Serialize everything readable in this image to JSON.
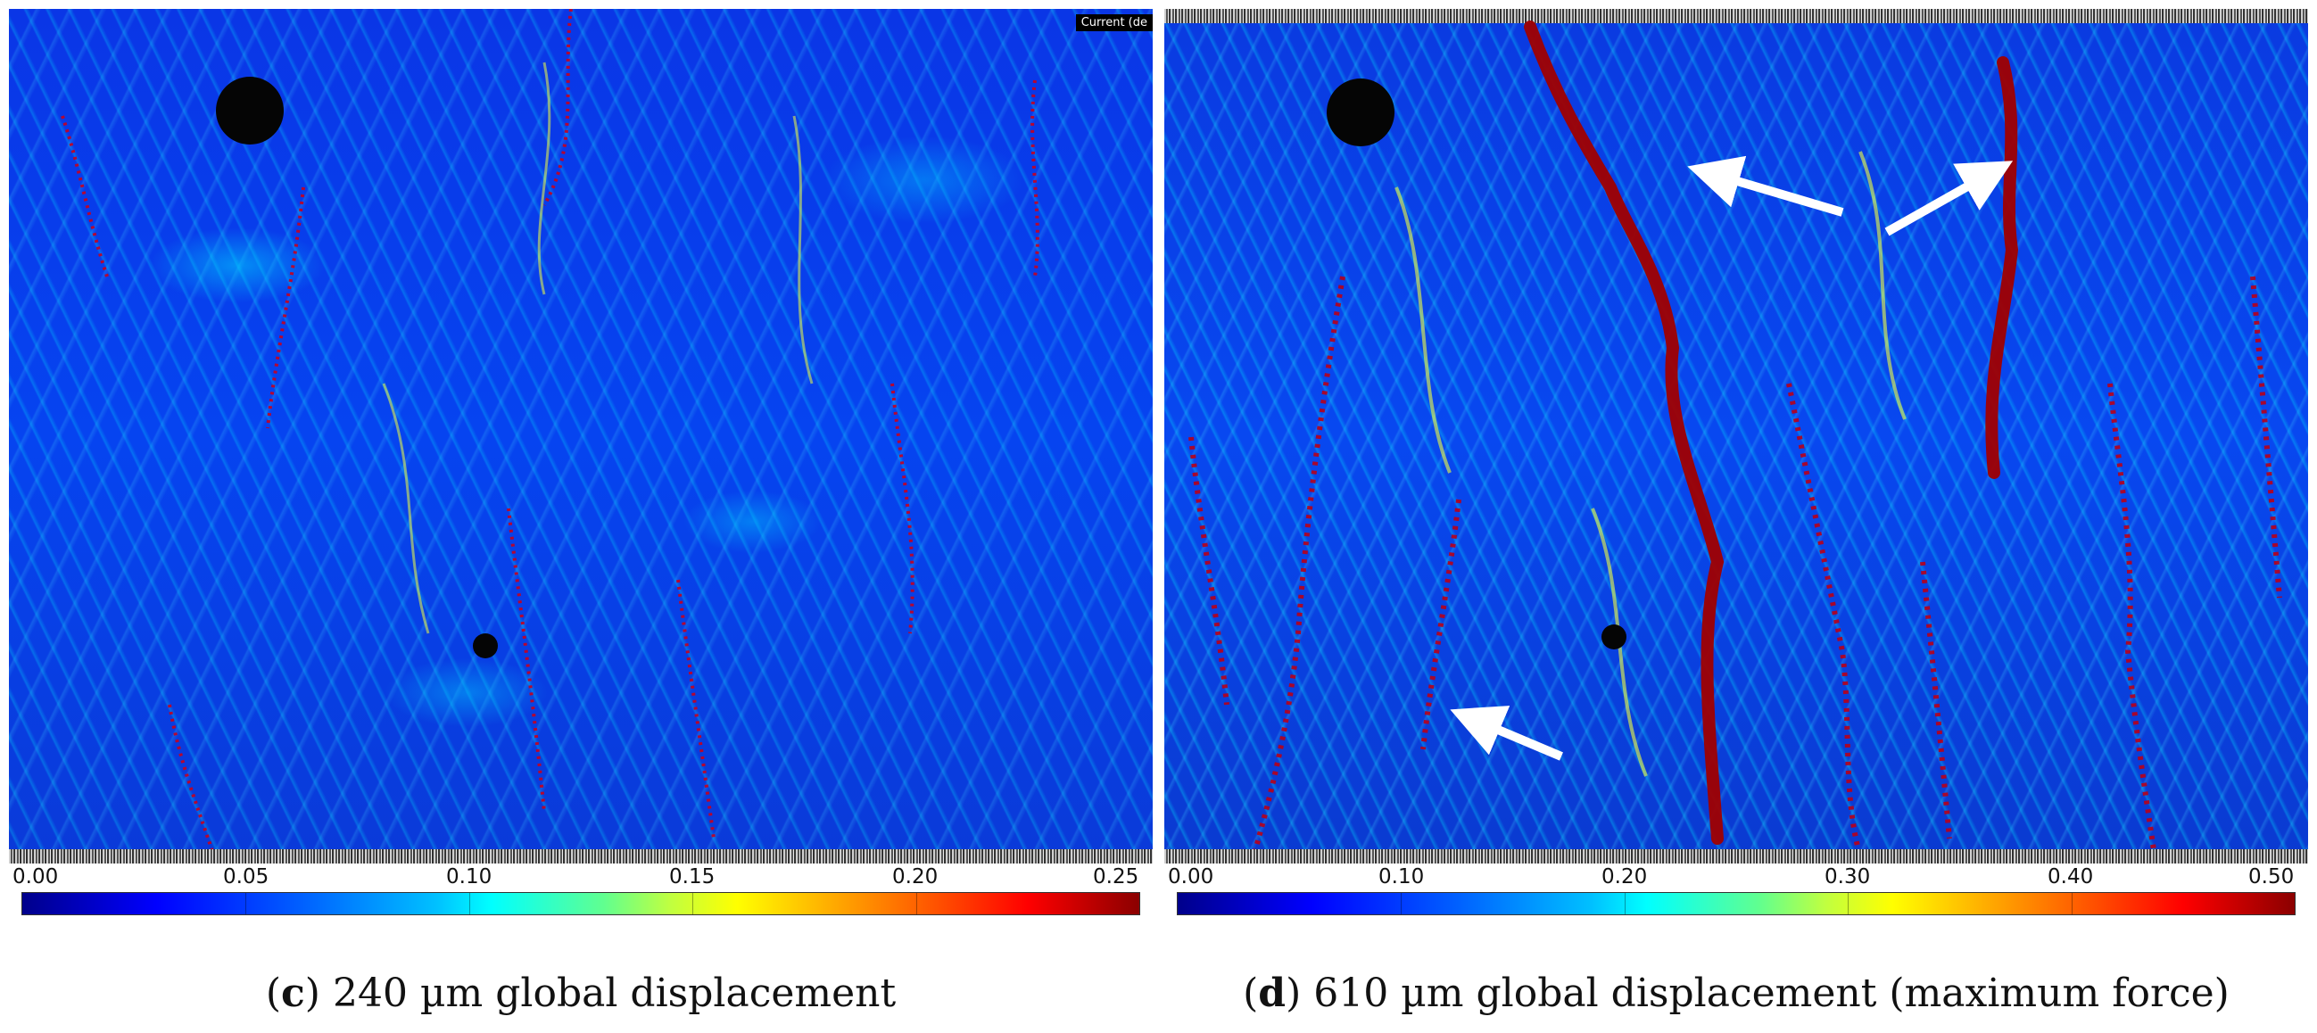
{
  "panel_c": {
    "overlay_label": "Current (de",
    "colorbar_ticks": [
      "0.00",
      "0.05",
      "0.10",
      "0.15",
      "0.20",
      "0.25"
    ],
    "caption_letter": "c",
    "caption_text": ") 240 µm global displacement"
  },
  "panel_d": {
    "colorbar_ticks": [
      "0.00",
      "0.10",
      "0.20",
      "0.30",
      "0.40",
      "0.50"
    ],
    "caption_letter": "d",
    "caption_text": ") 610 µm global displacement (maximum force)"
  },
  "colors": {
    "background_blue": "#0644f0",
    "strain_cyan": "#00e6ff",
    "crack_red": "#b00000",
    "arrow": "#ffffff"
  }
}
